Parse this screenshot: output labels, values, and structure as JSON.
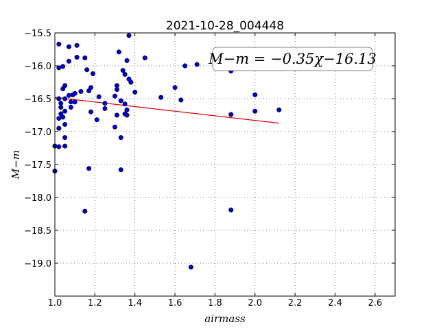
{
  "chart_data": {
    "type": "scatter",
    "title": "2021-10-28_004448",
    "xlabel": "airmass",
    "ylabel": "M−m",
    "xlim": [
      1.0,
      2.7
    ],
    "ylim": [
      -15.5,
      -19.5
    ],
    "y_inverted": true,
    "x_ticks": [
      1.0,
      1.2,
      1.4,
      1.6,
      1.8,
      2.0,
      2.2,
      2.4,
      2.6
    ],
    "x_tick_labels": [
      "1.0",
      "1.2",
      "1.4",
      "1.6",
      "1.8",
      "2.0",
      "2.2",
      "2.4",
      "2.6"
    ],
    "y_ticks": [
      -15.5,
      -16.0,
      -16.5,
      -17.0,
      -17.5,
      -18.0,
      -18.5,
      -19.0
    ],
    "y_tick_labels": [
      "−15.5",
      "−16.0",
      "−16.5",
      "−17.0",
      "−17.5",
      "−18.0",
      "−18.5",
      "−19.0"
    ],
    "grid": true,
    "colors": {
      "points": "#0000cc",
      "fit": "#dd0000",
      "grid": "#555555"
    },
    "annotation": "M−m = −0.35χ−16.13",
    "fit_line": {
      "slope": -0.35,
      "intercept": -16.13,
      "x": [
        1.0,
        2.12
      ]
    },
    "points": [
      {
        "x": 1.0,
        "y": -17.22
      },
      {
        "x": 1.0,
        "y": -17.6
      },
      {
        "x": 1.02,
        "y": -15.67
      },
      {
        "x": 1.02,
        "y": -16.03
      },
      {
        "x": 1.02,
        "y": -16.5
      },
      {
        "x": 1.02,
        "y": -16.8
      },
      {
        "x": 1.02,
        "y": -16.95
      },
      {
        "x": 1.02,
        "y": -17.23
      },
      {
        "x": 1.03,
        "y": -16.57
      },
      {
        "x": 1.03,
        "y": -16.63
      },
      {
        "x": 1.03,
        "y": -16.73
      },
      {
        "x": 1.04,
        "y": -16.01
      },
      {
        "x": 1.04,
        "y": -16.35
      },
      {
        "x": 1.04,
        "y": -16.78
      },
      {
        "x": 1.05,
        "y": -16.3
      },
      {
        "x": 1.05,
        "y": -16.5
      },
      {
        "x": 1.05,
        "y": -16.69
      },
      {
        "x": 1.05,
        "y": -16.89
      },
      {
        "x": 1.05,
        "y": -17.09
      },
      {
        "x": 1.05,
        "y": -17.22
      },
      {
        "x": 1.07,
        "y": -15.71
      },
      {
        "x": 1.07,
        "y": -15.93
      },
      {
        "x": 1.07,
        "y": -16.45
      },
      {
        "x": 1.08,
        "y": -16.55
      },
      {
        "x": 1.08,
        "y": -16.63
      },
      {
        "x": 1.09,
        "y": -16.44
      },
      {
        "x": 1.1,
        "y": -16.42
      },
      {
        "x": 1.1,
        "y": -16.55
      },
      {
        "x": 1.11,
        "y": -15.69
      },
      {
        "x": 1.11,
        "y": -15.87
      },
      {
        "x": 1.13,
        "y": -16.39
      },
      {
        "x": 1.15,
        "y": -15.88
      },
      {
        "x": 1.15,
        "y": -18.21
      },
      {
        "x": 1.16,
        "y": -16.06
      },
      {
        "x": 1.17,
        "y": -17.56
      },
      {
        "x": 1.17,
        "y": -16.38
      },
      {
        "x": 1.18,
        "y": -16.33
      },
      {
        "x": 1.18,
        "y": -16.7
      },
      {
        "x": 1.19,
        "y": -16.12
      },
      {
        "x": 1.21,
        "y": -16.82
      },
      {
        "x": 1.22,
        "y": -16.47
      },
      {
        "x": 1.25,
        "y": -16.57
      },
      {
        "x": 1.25,
        "y": -16.65
      },
      {
        "x": 1.3,
        "y": -16.93
      },
      {
        "x": 1.3,
        "y": -16.46
      },
      {
        "x": 1.31,
        "y": -16.3
      },
      {
        "x": 1.31,
        "y": -16.36
      },
      {
        "x": 1.31,
        "y": -16.75
      },
      {
        "x": 1.32,
        "y": -15.79
      },
      {
        "x": 1.33,
        "y": -16.53
      },
      {
        "x": 1.33,
        "y": -17.09
      },
      {
        "x": 1.33,
        "y": -17.58
      },
      {
        "x": 1.34,
        "y": -16.07
      },
      {
        "x": 1.35,
        "y": -16.13
      },
      {
        "x": 1.35,
        "y": -16.58
      },
      {
        "x": 1.35,
        "y": -16.73
      },
      {
        "x": 1.36,
        "y": -15.92
      },
      {
        "x": 1.36,
        "y": -16.67
      },
      {
        "x": 1.36,
        "y": -16.75
      },
      {
        "x": 1.37,
        "y": -15.54
      },
      {
        "x": 1.37,
        "y": -16.2
      },
      {
        "x": 1.38,
        "y": -16.25
      },
      {
        "x": 1.4,
        "y": -16.4
      },
      {
        "x": 1.45,
        "y": -15.88
      },
      {
        "x": 1.53,
        "y": -16.48
      },
      {
        "x": 1.6,
        "y": -16.33
      },
      {
        "x": 1.63,
        "y": -16.52
      },
      {
        "x": 1.65,
        "y": -16.0
      },
      {
        "x": 1.68,
        "y": -19.06
      },
      {
        "x": 1.71,
        "y": -15.98
      },
      {
        "x": 1.88,
        "y": -16.08
      },
      {
        "x": 1.88,
        "y": -16.74
      },
      {
        "x": 1.88,
        "y": -18.19
      },
      {
        "x": 2.0,
        "y": -16.44
      },
      {
        "x": 2.0,
        "y": -16.69
      },
      {
        "x": 2.12,
        "y": -16.67
      }
    ]
  }
}
